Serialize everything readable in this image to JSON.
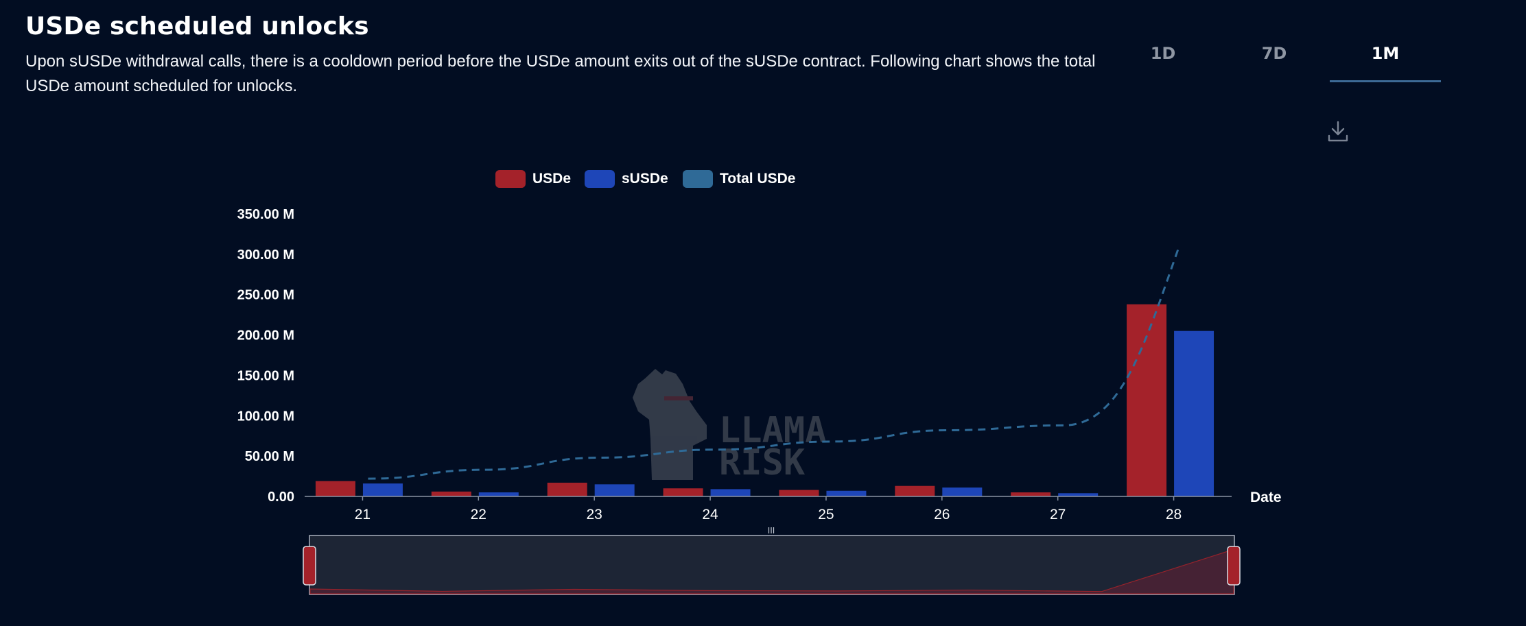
{
  "header": {
    "title": "USDe scheduled unlocks",
    "description": "Upon sUSDe withdrawal calls, there is a cooldown period before the USDe amount exits out of the sUSDe contract. Following chart shows the total USDe amount scheduled for unlocks."
  },
  "tabs": [
    {
      "label": "1D",
      "active": false
    },
    {
      "label": "7D",
      "active": false
    },
    {
      "label": "1M",
      "active": true
    }
  ],
  "toolbar": {
    "download_icon": "download-icon"
  },
  "watermark": {
    "line1": "LLAMA",
    "line2": "RISK"
  },
  "colors": {
    "background": "#020d22",
    "usde": "#a4222a",
    "susde": "#1e46b8",
    "total": "#2f6a97",
    "tab_underline": "#3d6a96"
  },
  "chart_data": {
    "type": "bar",
    "xlabel": "Date",
    "categories": [
      "21",
      "22",
      "23",
      "24",
      "25",
      "26",
      "27",
      "28"
    ],
    "series": [
      {
        "name": "USDe",
        "type": "bar",
        "values": [
          19,
          6,
          17,
          10,
          8,
          13,
          5,
          238
        ]
      },
      {
        "name": "sUSDe",
        "type": "bar",
        "values": [
          16,
          5,
          15,
          9,
          7,
          11,
          4,
          205
        ]
      },
      {
        "name": "Total USDe",
        "type": "line",
        "style": "dashed",
        "values": [
          22,
          33,
          48,
          58,
          68,
          82,
          88,
          310
        ]
      }
    ],
    "yticks": [
      "0.00",
      "50.00 M",
      "100.00 M",
      "150.00 M",
      "200.00 M",
      "250.00 M",
      "300.00 M",
      "350.00 M"
    ],
    "ylim": [
      0,
      350
    ],
    "legend_position": "top",
    "grid": false,
    "data_zoom": {
      "start": 0,
      "end": 100,
      "handle_label": "III"
    }
  }
}
